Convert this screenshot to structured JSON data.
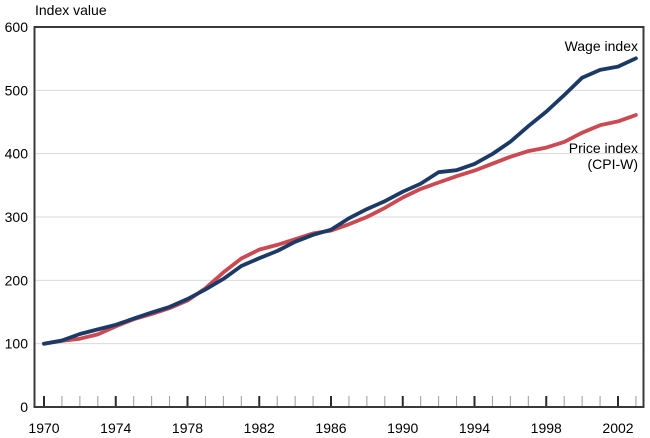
{
  "chart_data": {
    "type": "line",
    "title": "",
    "ylabel": "Index value",
    "xlabel": "",
    "ylim": [
      0,
      600
    ],
    "yticks": [
      0,
      100,
      200,
      300,
      400,
      500,
      600
    ],
    "xlim": [
      1970,
      2003
    ],
    "xticks_labeled": [
      1970,
      1974,
      1978,
      1982,
      1986,
      1990,
      1994,
      1998,
      2002
    ],
    "grid": "horizontal-light-gray",
    "legend_position": "inline-annotations",
    "x": [
      1970,
      1971,
      1972,
      1973,
      1974,
      1975,
      1976,
      1977,
      1978,
      1979,
      1980,
      1981,
      1982,
      1983,
      1984,
      1985,
      1986,
      1987,
      1988,
      1989,
      1990,
      1991,
      1992,
      1993,
      1994,
      1995,
      1996,
      1997,
      1998,
      1999,
      2000,
      2001,
      2002,
      2003
    ],
    "series": [
      {
        "name": "Wage index",
        "color": "#1b3a66",
        "values": [
          100,
          105.0,
          115.3,
          122.5,
          129.8,
          139.5,
          149.1,
          158.1,
          170.6,
          185.6,
          202.3,
          222.6,
          234.9,
          246.3,
          260.8,
          271.9,
          280.0,
          297.9,
          312.5,
          324.9,
          339.9,
          352.6,
          370.7,
          373.9,
          383.9,
          399.4,
          418.9,
          443.3,
          466.5,
          492.5,
          519.8,
          532.2,
          537.5,
          550.6
        ]
      },
      {
        "name": "Price index (CPI-W)",
        "color": "#cb4a52",
        "values": [
          100,
          104.4,
          107.9,
          114.6,
          127.2,
          138.7,
          146.7,
          156.2,
          168.2,
          187.4,
          212.6,
          234.4,
          248.5,
          255.9,
          264.9,
          274.1,
          278.5,
          288.5,
          300.0,
          314.4,
          330.8,
          344.4,
          354.4,
          364.4,
          373.3,
          384.1,
          395.1,
          404.1,
          409.5,
          418.5,
          433.1,
          444.9,
          451.0,
          461.0
        ]
      }
    ]
  },
  "labels": {
    "y_axis_title": "Index value",
    "wage_annotation": "Wage index",
    "price_annotation_line1": "Price index",
    "price_annotation_line2": "(CPI-W)"
  },
  "colors": {
    "wage_line": "#1b3a66",
    "price_line": "#cb4a52",
    "gridline": "#d9d9d9",
    "frame": "#3a3a3a",
    "tick_major": "#2b2b2b",
    "tick_minor": "#9b9b9b",
    "text": "#000000",
    "background": "#ffffff"
  }
}
